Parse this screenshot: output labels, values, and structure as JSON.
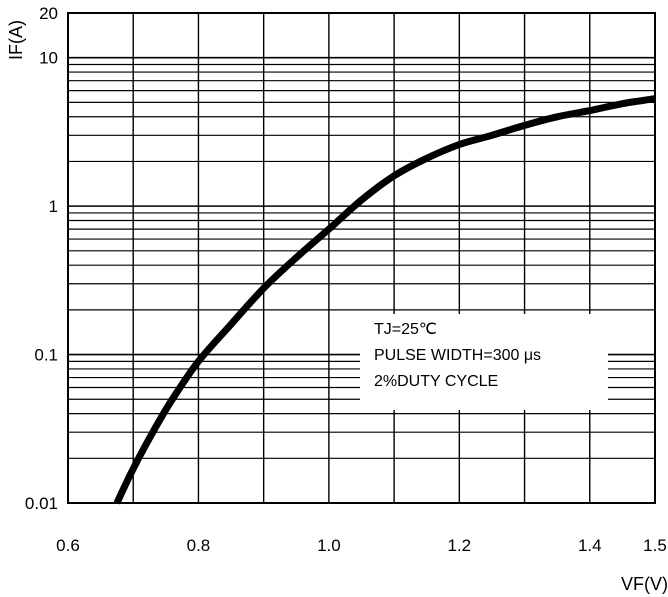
{
  "chart_data": {
    "type": "line",
    "title": "",
    "xlabel": "VF(V)",
    "ylabel": "IF(A)",
    "xlim": [
      0.6,
      1.5
    ],
    "ylim": [
      0.01,
      20
    ],
    "y_scale": "log",
    "grid": true,
    "x_ticks": [
      "0.6",
      "0.8",
      "1.0",
      "1.2",
      "1.4",
      "1.5"
    ],
    "y_ticks": [
      "0.01",
      "0.1",
      "1",
      "10",
      "20"
    ],
    "annotations": [
      "TJ=25℃",
      "PULSE WIDTH=300 μs",
      "2%DUTY CYCLE"
    ],
    "series": [
      {
        "x": [
          0.675,
          0.7,
          0.73,
          0.76,
          0.8,
          0.85,
          0.9,
          0.95,
          1.0,
          1.05,
          1.1,
          1.15,
          1.2,
          1.25,
          1.3,
          1.35,
          1.4,
          1.45,
          1.5
        ],
        "y": [
          0.01,
          0.017,
          0.03,
          0.05,
          0.09,
          0.16,
          0.28,
          0.45,
          0.7,
          1.1,
          1.6,
          2.1,
          2.6,
          3.0,
          3.5,
          4.0,
          4.4,
          4.9,
          5.3
        ]
      }
    ]
  }
}
